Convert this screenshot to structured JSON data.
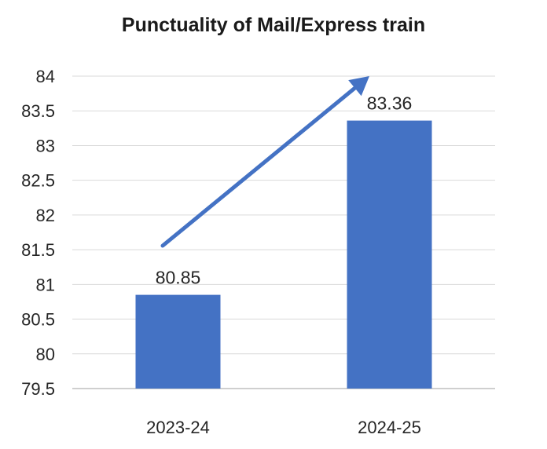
{
  "chart_data": {
    "type": "bar",
    "title": "Punctuality of Mail/Express train",
    "categories": [
      "2023-24",
      "2024-25"
    ],
    "values": [
      80.85,
      83.36
    ],
    "data_labels": [
      "80.85",
      "83.36"
    ],
    "y_ticks": [
      "79.5",
      "80",
      "80.5",
      "81",
      "81.5",
      "82",
      "82.5",
      "83",
      "83.5",
      "84"
    ],
    "ylim": [
      79.5,
      84
    ],
    "xlabel": "",
    "ylabel": "",
    "grid": true,
    "legend": "none",
    "annotation": "upward trend arrow",
    "colors": {
      "bar": "#4472C4",
      "arrow": "#4472C4",
      "grid": "#d9d9d9",
      "axis": "#bfbfbf",
      "text": "#262626"
    }
  }
}
